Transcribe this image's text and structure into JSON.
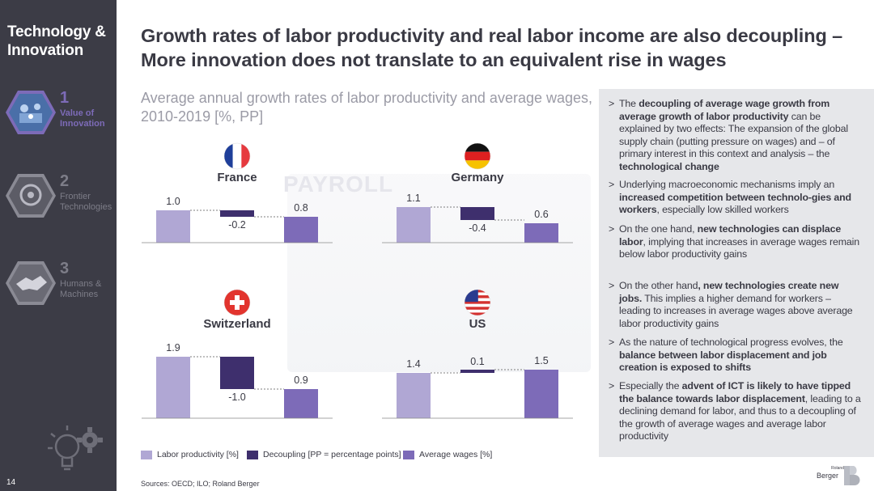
{
  "sidebar": {
    "title": "Technology & Innovation",
    "items": [
      {
        "num": "1",
        "label": "Value of Innovation",
        "state": "active"
      },
      {
        "num": "2",
        "label": "Frontier Technologies",
        "state": "dim"
      },
      {
        "num": "3",
        "label": "Humans & Machines",
        "state": "dim"
      }
    ],
    "page_number": "14"
  },
  "title": "Growth rates of labor productivity and real labor income are also decoupling – More innovation does not translate to an equivalent rise in wages",
  "subtitle": "Average annual growth rates of labor productivity and average wages, 2010-2019 [%, PP]",
  "colors": {
    "labor_productivity": "#b0a7d4",
    "decoupling": "#3e2f6d",
    "average_wages": "#7d6bb8",
    "sidebar_bg": "#3c3c46",
    "panel_bg": "#e6e7ea"
  },
  "chart_data": [
    {
      "type": "bar",
      "title": "France",
      "categories": [
        "Labor productivity [%]",
        "Decoupling [PP = percentage points]",
        "Average wages [%]"
      ],
      "values": [
        1.0,
        -0.2,
        0.8
      ],
      "labels": [
        "1.0",
        "-0.2",
        "0.8"
      ],
      "flag": "fr"
    },
    {
      "type": "bar",
      "title": "Germany",
      "categories": [
        "Labor productivity [%]",
        "Decoupling [PP = percentage points]",
        "Average wages [%]"
      ],
      "values": [
        1.1,
        -0.4,
        0.6
      ],
      "labels": [
        "1.1",
        "-0.4",
        "0.6"
      ],
      "flag": "de"
    },
    {
      "type": "bar",
      "title": "Switzerland",
      "categories": [
        "Labor productivity [%]",
        "Decoupling [PP = percentage points]",
        "Average wages [%]"
      ],
      "values": [
        1.9,
        -1.0,
        0.9
      ],
      "labels": [
        "1.9",
        "-1.0",
        "0.9"
      ],
      "flag": "ch"
    },
    {
      "type": "bar",
      "title": "US",
      "categories": [
        "Labor productivity [%]",
        "Decoupling [PP = percentage points]",
        "Average wages [%]"
      ],
      "values": [
        1.4,
        0.1,
        1.5
      ],
      "labels": [
        "1.4",
        "0.1",
        "1.5"
      ],
      "flag": "us"
    }
  ],
  "legend": [
    {
      "label": "Labor productivity [%]",
      "color": "#b0a7d4"
    },
    {
      "label": "Decoupling [PP = percentage points]",
      "color": "#3e2f6d"
    },
    {
      "label": "Average wages [%]",
      "color": "#7d6bb8"
    }
  ],
  "background_word": "PAYROLL",
  "bullets": [
    [
      {
        "t": "The "
      },
      {
        "t": "decoupling of average wage growth from average growth of labor productivity",
        "b": true
      },
      {
        "t": " can be explained by two effects: The expansion of the global supply chain (putting pressure on wages) and – of primary interest in this context and analysis – the "
      },
      {
        "t": "technological change",
        "b": true
      }
    ],
    [
      {
        "t": "Underlying macroeconomic mechanisms imply an "
      },
      {
        "t": "increased competition between technolo-gies and workers",
        "b": true
      },
      {
        "t": ", especially low skilled workers"
      }
    ],
    [
      {
        "t": "On the one hand, "
      },
      {
        "t": "new technologies can displace labor",
        "b": true
      },
      {
        "t": ", implying that increases in average wages remain below labor productivity gains"
      }
    ],
    [
      {
        "t": "On the other hand"
      },
      {
        "t": ", new technologies create new jobs.",
        "b": true
      },
      {
        "t": " This implies a higher demand for workers – leading to increases in average wages above average labor productivity gains"
      }
    ],
    [
      {
        "t": "As the nature of technological progress evolves, the "
      },
      {
        "t": "balance between labor displacement and job creation is exposed to shifts",
        "b": true
      }
    ],
    [
      {
        "t": "Especially the "
      },
      {
        "t": "advent of ICT is likely to have tipped the balance towards labor displacement",
        "b": true
      },
      {
        "t": ", leading to a declining demand for labor, and thus to a decoupling of the growth of average wages and average labor productivity"
      }
    ]
  ],
  "bullet_marker": ">",
  "sources": "Sources: OECD; ILO; Roland Berger",
  "logo": {
    "small": "Roland",
    "text": "Berger"
  }
}
